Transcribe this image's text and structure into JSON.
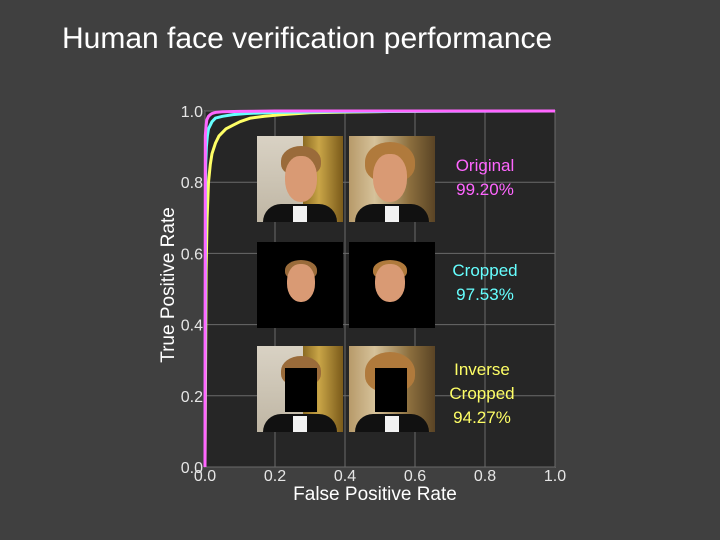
{
  "page": {
    "title": "Human face verification performance",
    "background": "#404040"
  },
  "chart_data": {
    "type": "line",
    "title": "",
    "xlabel": "False Positive Rate",
    "ylabel": "True Positive Rate",
    "xlim": [
      0.0,
      1.0
    ],
    "ylim": [
      0.0,
      1.0
    ],
    "xticks": [
      "0.0",
      "0.2",
      "0.4",
      "0.6",
      "0.8",
      "1.0"
    ],
    "yticks": [
      "0.0",
      "0.2",
      "0.4",
      "0.6",
      "0.8",
      "1.0"
    ],
    "grid": true,
    "series": [
      {
        "name": "Inverse Cropped 94.27%",
        "color": "#ffff66",
        "x": [
          0.0,
          0.003,
          0.006,
          0.01,
          0.015,
          0.02,
          0.03,
          0.04,
          0.06,
          0.08,
          0.1,
          0.13,
          0.17,
          0.22,
          0.3,
          0.4,
          0.55,
          0.7,
          1.0
        ],
        "y": [
          0.0,
          0.55,
          0.7,
          0.8,
          0.85,
          0.88,
          0.91,
          0.93,
          0.95,
          0.96,
          0.97,
          0.98,
          0.985,
          0.99,
          0.995,
          0.997,
          0.999,
          1.0,
          1.0
        ]
      },
      {
        "name": "Cropped 97.53%",
        "color": "#66ffff",
        "x": [
          0.0,
          0.002,
          0.004,
          0.007,
          0.01,
          0.015,
          0.02,
          0.03,
          0.05,
          0.08,
          0.12,
          0.2,
          0.35,
          0.55,
          1.0
        ],
        "y": [
          0.0,
          0.85,
          0.9,
          0.93,
          0.95,
          0.96,
          0.97,
          0.98,
          0.985,
          0.99,
          0.993,
          0.996,
          0.998,
          0.999,
          1.0
        ]
      },
      {
        "name": "Original 99.20%",
        "color": "#ff66ff",
        "x": [
          0.0,
          0.001,
          0.003,
          0.005,
          0.01,
          0.015,
          0.02,
          0.03,
          0.05,
          0.1,
          0.2,
          0.4,
          1.0
        ],
        "y": [
          0.0,
          0.93,
          0.96,
          0.975,
          0.985,
          0.99,
          0.993,
          0.996,
          0.998,
          0.999,
          1.0,
          1.0,
          1.0
        ]
      }
    ]
  },
  "legend": [
    {
      "lines": [
        "Original",
        "99.20%"
      ],
      "color": "#ff66ff"
    },
    {
      "lines": [
        "Cropped",
        "97.53%"
      ],
      "color": "#66ffff"
    },
    {
      "lines": [
        "Inverse",
        "Cropped",
        "94.27%"
      ],
      "color": "#ffff66"
    }
  ],
  "thumbnails": [
    {
      "row": "original",
      "variant": "full"
    },
    {
      "row": "original",
      "variant": "full-alt"
    },
    {
      "row": "cropped",
      "variant": "face-only"
    },
    {
      "row": "cropped",
      "variant": "face-only-alt"
    },
    {
      "row": "inverse-cropped",
      "variant": "face-masked"
    },
    {
      "row": "inverse-cropped",
      "variant": "face-masked-alt"
    }
  ]
}
